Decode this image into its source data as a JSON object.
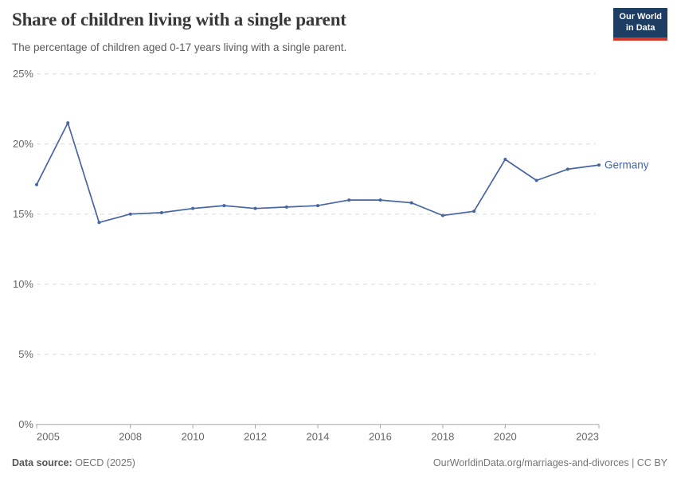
{
  "header": {
    "title": "Share of children living with a single parent",
    "subtitle": "The percentage of children aged 0-17 years living with a single parent.",
    "logo": {
      "line1": "Our World",
      "line2": "in Data"
    }
  },
  "footer": {
    "source_label": "Data source:",
    "source_value": " OECD (2025)",
    "link": "OurWorldinData.org/marriages-and-divorces",
    "separator": " | ",
    "license": "CC BY"
  },
  "colors": {
    "line": "#4665a3",
    "entity_label": "#4665a3",
    "grid": "#dcdcdc",
    "axis": "#a8a8a8",
    "tick_text": "#666666",
    "logo_bg": "#1d3d63",
    "logo_stripe": "#d8352a"
  },
  "chart_data": {
    "type": "line",
    "title": "Share of children living with a single parent",
    "subtitle": "The percentage of children aged 0-17 years living with a single parent.",
    "x": [
      2005,
      2006,
      2007,
      2008,
      2009,
      2010,
      2011,
      2012,
      2013,
      2014,
      2015,
      2016,
      2017,
      2018,
      2019,
      2020,
      2021,
      2022,
      2023
    ],
    "series": [
      {
        "name": "Germany",
        "color": "#4665a3",
        "values": [
          17.1,
          21.5,
          14.4,
          15.0,
          15.1,
          15.4,
          15.6,
          15.4,
          15.5,
          15.6,
          16.0,
          16.0,
          15.8,
          14.9,
          15.2,
          18.9,
          17.4,
          18.2,
          18.5
        ]
      }
    ],
    "xlim": [
      2005,
      2023
    ],
    "ylim": [
      0,
      25
    ],
    "x_ticks": [
      2005,
      2008,
      2010,
      2012,
      2014,
      2016,
      2018,
      2020,
      2023
    ],
    "y_ticks": [
      0,
      5,
      10,
      15,
      20,
      25
    ],
    "y_tick_suffix": "%",
    "grid": true,
    "legend": "entity-label-at-line-end"
  }
}
